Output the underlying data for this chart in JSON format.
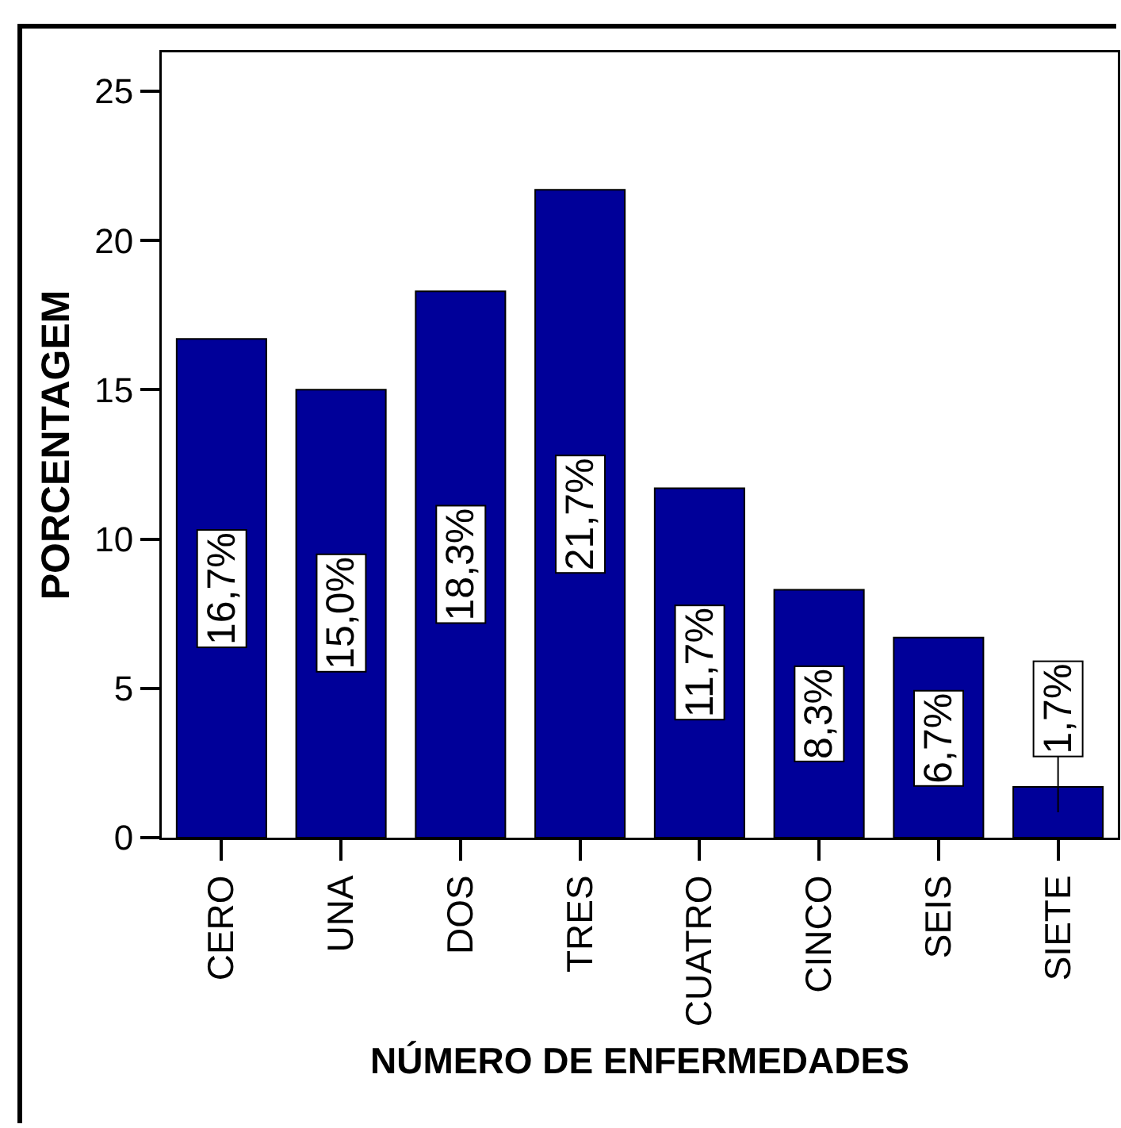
{
  "chart_data": {
    "type": "bar",
    "xlabel": "NÚMERO DE ENFERMEDADES",
    "ylabel": "PORCENTAGEM",
    "categories": [
      "CERO",
      "UNA",
      "DOS",
      "TRES",
      "CUATRO",
      "CINCO",
      "SEIS",
      "SIETE"
    ],
    "values": [
      16.7,
      15.0,
      18.3,
      21.7,
      11.7,
      8.3,
      6.7,
      1.7
    ],
    "value_labels": [
      "16,7%",
      "15,0%",
      "18,3%",
      "21,7%",
      "11,7%",
      "8,3%",
      "6,7%",
      "1,7%"
    ],
    "color": "#000099",
    "ylim": [
      0,
      26.3
    ],
    "yticks": [
      0,
      5,
      10,
      15,
      20,
      25
    ]
  }
}
